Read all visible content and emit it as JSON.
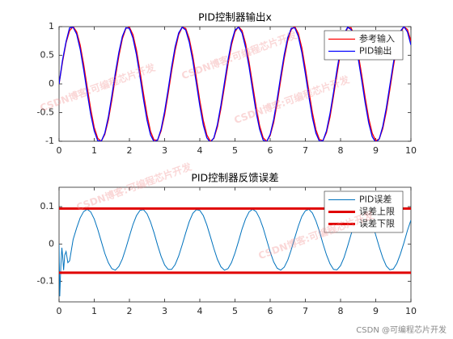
{
  "watermark": "CSDN博客:可编程芯片开发",
  "credit": "CSDN @可编程芯片开发",
  "chart_data": [
    {
      "type": "line",
      "title": "PID控制器输出x",
      "x": [
        0,
        0.1,
        0.2,
        0.3,
        0.4,
        0.5,
        0.6,
        0.7,
        0.8,
        0.9,
        1,
        1.1,
        1.2,
        1.3,
        1.4,
        1.5,
        1.6,
        1.7,
        1.8,
        1.9,
        2,
        2.1,
        2.2,
        2.3,
        2.4,
        2.5,
        2.6,
        2.7,
        2.8,
        2.9,
        3,
        3.1,
        3.2,
        3.3,
        3.4,
        3.5,
        3.6,
        3.7,
        3.8,
        3.9,
        4,
        4.1,
        4.2,
        4.3,
        4.4,
        4.5,
        4.6,
        4.7,
        4.8,
        4.9,
        5,
        5.1,
        5.2,
        5.3,
        5.4,
        5.5,
        5.6,
        5.7,
        5.8,
        5.9,
        6,
        6.1,
        6.2,
        6.3,
        6.4,
        6.5,
        6.6,
        6.7,
        6.8,
        6.9,
        7,
        7.1,
        7.2,
        7.3,
        7.4,
        7.5,
        7.6,
        7.7,
        7.8,
        7.9,
        8,
        8.1,
        8.2,
        8.3,
        8.4,
        8.5,
        8.6,
        8.7,
        8.8,
        8.9,
        9,
        9.1,
        9.2,
        9.3,
        9.4,
        9.5,
        9.6,
        9.7,
        9.8,
        9.9,
        10
      ],
      "series": [
        {
          "name": "参考输入",
          "color": "#ff0000",
          "width": 1.3,
          "values": [
            0,
            0.39,
            0.72,
            0.93,
            1,
            0.91,
            0.68,
            0.34,
            -0.06,
            -0.44,
            -0.76,
            -0.95,
            -1,
            -0.88,
            -0.63,
            -0.28,
            0.12,
            0.49,
            0.79,
            0.97,
            0.99,
            0.86,
            0.59,
            0.22,
            -0.17,
            -0.54,
            -0.83,
            -0.98,
            -0.98,
            -0.82,
            -0.54,
            -0.17,
            0.23,
            0.59,
            0.86,
            0.99,
            0.97,
            0.79,
            0.49,
            0.11,
            -0.29,
            -0.64,
            -0.89,
            -1,
            -0.95,
            -0.75,
            -0.43,
            -0.05,
            0.34,
            0.68,
            0.91,
            1,
            0.93,
            0.71,
            0.38,
            -0.01,
            -0.4,
            -0.73,
            -0.94,
            -1,
            -0.9,
            -0.67,
            -0.33,
            0.07,
            0.45,
            0.76,
            0.95,
            1,
            0.88,
            0.63,
            0.27,
            -0.13,
            -0.5,
            -0.8,
            -0.97,
            -0.99,
            -0.85,
            -0.58,
            -0.21,
            0.18,
            0.55,
            0.83,
            0.98,
            0.98,
            0.82,
            0.53,
            0.16,
            -0.24,
            -0.6,
            -0.86,
            -0.99,
            -0.96,
            -0.78,
            -0.48,
            -0.1,
            0.3,
            0.65,
            0.89,
            1,
            0.95,
            0.75
          ]
        },
        {
          "name": "PID输出",
          "color": "#0000ff",
          "width": 1.3,
          "values": [
            0,
            0.42,
            0.74,
            0.98,
            0.99,
            0.87,
            0.61,
            0.25,
            -0.15,
            -0.53,
            -0.82,
            -0.99,
            -1,
            -0.86,
            -0.58,
            -0.21,
            0.19,
            0.55,
            0.83,
            0.98,
            0.97,
            0.8,
            0.51,
            0.13,
            -0.27,
            -0.63,
            -0.89,
            -1.01,
            -0.98,
            -0.79,
            -0.48,
            -0.1,
            0.3,
            0.65,
            0.89,
            0.99,
            0.94,
            0.73,
            0.41,
            0.02,
            -0.38,
            -0.72,
            -0.94,
            -1.02,
            -0.94,
            -0.71,
            -0.37,
            0.02,
            0.41,
            0.73,
            0.94,
            0.99,
            0.89,
            0.64,
            0.3,
            -0.1,
            -0.49,
            -0.79,
            -0.98,
            -1.01,
            -0.88,
            -0.62,
            -0.26,
            0.14,
            0.51,
            0.81,
            0.97,
            0.98,
            0.83,
            0.55,
            0.18,
            -0.22,
            -0.59,
            -0.86,
            -1,
            -0.99,
            -0.82,
            -0.52,
            -0.15,
            0.25,
            0.61,
            0.87,
            0.99,
            0.95,
            0.76,
            0.45,
            0.07,
            -0.33,
            -0.68,
            -0.92,
            -1.02,
            -0.96,
            -0.74,
            -0.42,
            -0.03,
            0.36,
            0.7,
            0.92,
            1,
            0.91,
            0.68
          ]
        }
      ],
      "xlim": [
        0,
        10
      ],
      "xticks": [
        0,
        1,
        2,
        3,
        4,
        5,
        6,
        7,
        8,
        9,
        10
      ],
      "ylim": [
        -1,
        1
      ],
      "yticks": [
        -1,
        -0.5,
        0,
        0.5,
        1
      ],
      "legend": "northeast"
    },
    {
      "type": "line",
      "title": "PID控制器反馈误差",
      "series": [
        {
          "name": "PID误差",
          "color": "#0072bd",
          "width": 1,
          "x": [
            0,
            0.02,
            0.05,
            0.08,
            0.1,
            0.13,
            0.16,
            0.2,
            0.25,
            0.3,
            0.4,
            0.5,
            0.6,
            0.7,
            0.8,
            0.9,
            1,
            1.1,
            1.2,
            1.3,
            1.4,
            1.5,
            1.6,
            1.7,
            1.8,
            1.9,
            2,
            2.1,
            2.2,
            2.3,
            2.4,
            2.5,
            2.6,
            2.7,
            2.8,
            2.9,
            3,
            3.1,
            3.2,
            3.3,
            3.4,
            3.5,
            3.6,
            3.7,
            3.8,
            3.9,
            4,
            4.1,
            4.2,
            4.3,
            4.4,
            4.5,
            4.6,
            4.7,
            4.8,
            4.9,
            5,
            5.1,
            5.2,
            5.3,
            5.4,
            5.5,
            5.6,
            5.7,
            5.8,
            5.9,
            6,
            6.1,
            6.2,
            6.3,
            6.4,
            6.5,
            6.6,
            6.7,
            6.8,
            6.9,
            7,
            7.1,
            7.2,
            7.3,
            7.4,
            7.5,
            7.6,
            7.7,
            7.8,
            7.9,
            8,
            8.1,
            8.2,
            8.3,
            8.4,
            8.5,
            8.6,
            8.7,
            8.8,
            8.9,
            9,
            9.1,
            9.2,
            9.3,
            9.4,
            9.5,
            9.6,
            9.7,
            9.8,
            9.9,
            10
          ],
          "values": [
            0,
            -0.14,
            -0.06,
            -0.01,
            -0.03,
            -0.07,
            -0.03,
            -0.02,
            -0.05,
            -0.045,
            0.012,
            0.043,
            0.07,
            0.087,
            0.093,
            0.086,
            0.067,
            0.039,
            0.007,
            -0.025,
            -0.05,
            -0.066,
            -0.07,
            -0.06,
            -0.04,
            -0.011,
            0.021,
            0.052,
            0.076,
            0.09,
            0.092,
            0.081,
            0.059,
            0.03,
            -0.003,
            -0.033,
            -0.056,
            -0.068,
            -0.068,
            -0.055,
            -0.032,
            -0.002,
            0.03,
            0.06,
            0.082,
            0.092,
            0.09,
            0.076,
            0.051,
            0.02,
            -0.012,
            -0.041,
            -0.061,
            -0.07,
            -0.066,
            -0.05,
            -0.024,
            0.007,
            0.04,
            0.067,
            0.086,
            0.093,
            0.087,
            0.069,
            0.043,
            0.011,
            -0.021,
            -0.048,
            -0.065,
            -0.07,
            -0.062,
            -0.043,
            -0.015,
            0.017,
            0.048,
            0.074,
            0.089,
            0.093,
            0.083,
            0.062,
            0.034,
            0.001,
            -0.029,
            -0.053,
            -0.068,
            -0.069,
            -0.058,
            -0.036,
            -0.006,
            0.026,
            0.056,
            0.079,
            0.092,
            0.091,
            0.078,
            0.055,
            0.024,
            -0.008,
            -0.037,
            -0.059,
            -0.069,
            -0.067,
            -0.052,
            -0.027,
            0.003,
            0.036,
            0.064
          ]
        },
        {
          "name": "误差上限",
          "color": "#e00000",
          "width": 3,
          "x": [
            0,
            10
          ],
          "values": [
            0.095,
            0.095
          ]
        },
        {
          "name": "误差下限",
          "color": "#e00000",
          "width": 3,
          "x": [
            0,
            10
          ],
          "values": [
            -0.077,
            -0.077
          ]
        }
      ],
      "xlim": [
        0,
        10
      ],
      "xticks": [
        0,
        1,
        2,
        3,
        4,
        5,
        6,
        7,
        8,
        9,
        10
      ],
      "ylim": [
        -0.155,
        0.152
      ],
      "yticks": [
        -0.1,
        0,
        0.1
      ],
      "legend": "northeast"
    }
  ]
}
